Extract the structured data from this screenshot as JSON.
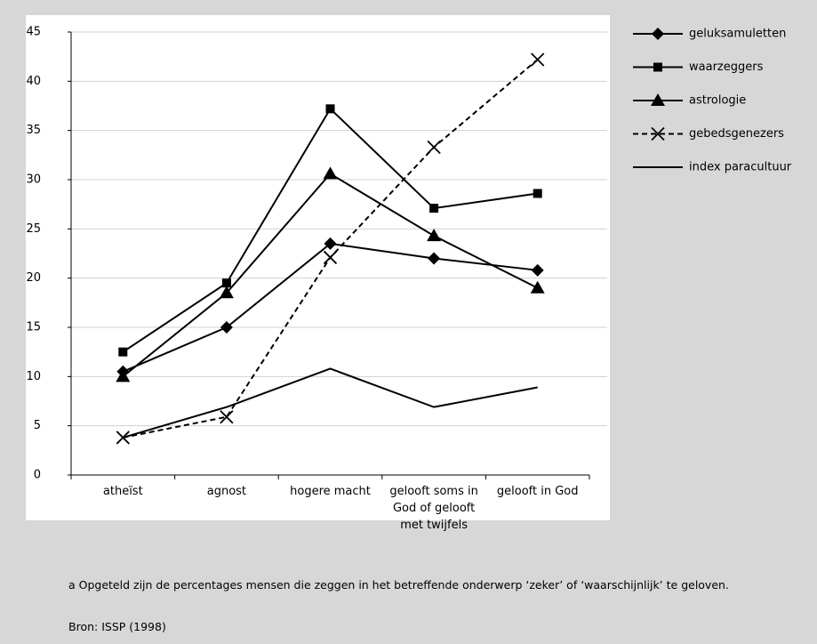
{
  "chart_data": {
    "type": "line",
    "categories": [
      "atheïst",
      "agnost",
      "hogere macht",
      "gelooft soms in\nGod of gelooft\nmet twijfels",
      "gelooft in God"
    ],
    "series": [
      {
        "name": "geluksamuletten",
        "color": "#000000",
        "marker": "diamond",
        "dashed": false,
        "values": [
          10.5,
          15,
          23.5,
          22,
          20.8
        ]
      },
      {
        "name": "waarzeggers",
        "color": "#000000",
        "marker": "square",
        "dashed": false,
        "values": [
          12.5,
          19.5,
          37.2,
          27.1,
          28.6
        ]
      },
      {
        "name": "astrologie",
        "color": "#000000",
        "marker": "triangle",
        "dashed": false,
        "values": [
          10,
          18.5,
          30.6,
          24.3,
          19
        ]
      },
      {
        "name": "gebedsgenezers",
        "color": "#000000",
        "marker": "x",
        "dashed": true,
        "values": [
          3.8,
          5.9,
          22.1,
          33.3,
          42.2
        ]
      },
      {
        "name": "index paracultuur",
        "color": "#000000",
        "marker": "none",
        "dashed": false,
        "values": [
          3.8,
          6.9,
          10.8,
          6.9,
          8.9
        ]
      }
    ],
    "ylim": [
      0,
      45
    ],
    "yticks": [
      0,
      5,
      10,
      15,
      20,
      25,
      30,
      35,
      40,
      45
    ],
    "grid": true,
    "legend": "right",
    "footnote": "a    Opgeteld zijn de percentages mensen die zeggen in het betreffende onderwerp ‘zeker’ of ‘waarschijnlijk’ te geloven.",
    "source": "Bron: ISSP (1998)"
  }
}
